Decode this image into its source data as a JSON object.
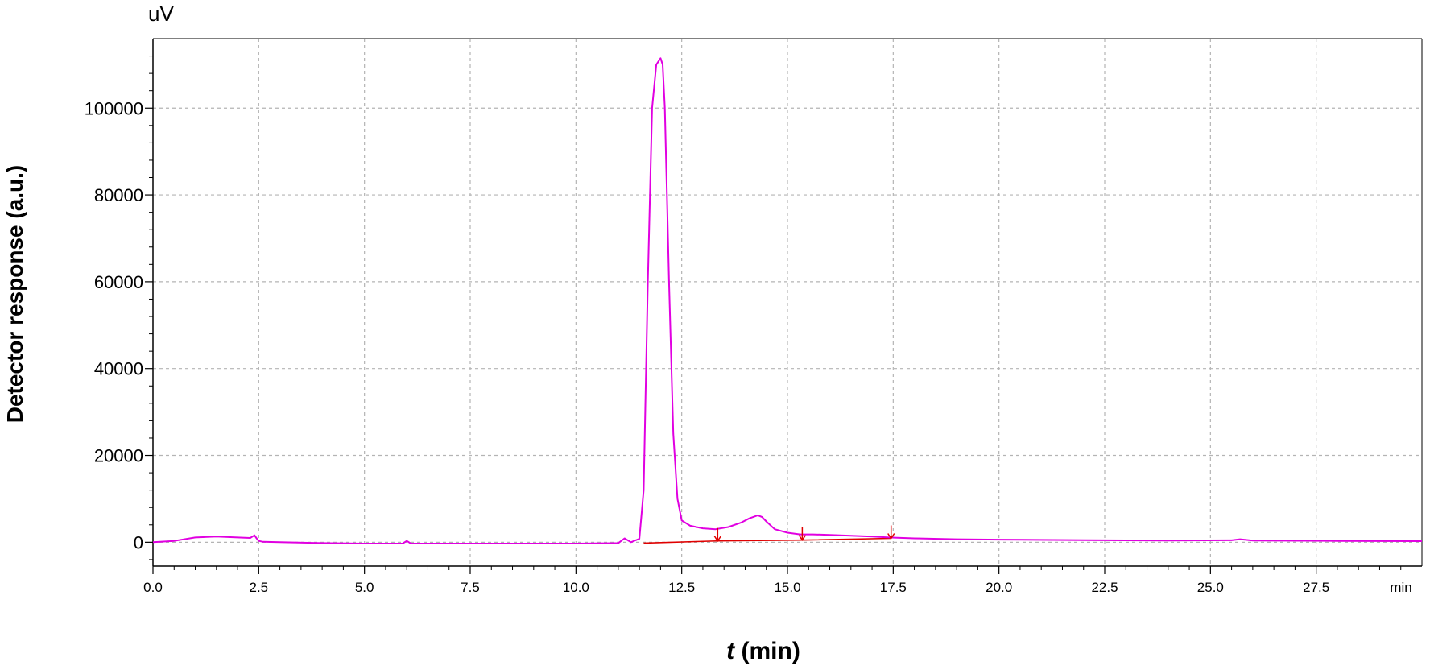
{
  "chart_data": {
    "type": "line",
    "title": "",
    "ylabel": "Detector response (a.u.)",
    "xlabel_var": "t",
    "xlabel_unit": " (min)",
    "y_unit_label": "uV",
    "x_unit_label": "min",
    "xlim": [
      0,
      30
    ],
    "ylim": [
      -5500,
      116000
    ],
    "grid": true,
    "y_ticks": [
      0,
      20000,
      40000,
      60000,
      80000,
      100000
    ],
    "y_tick_labels": [
      "0",
      "20000",
      "40000",
      "60000",
      "80000",
      "100000"
    ],
    "x_ticks": [
      0,
      2.5,
      5,
      7.5,
      10,
      12.5,
      15,
      17.5,
      20,
      22.5,
      25,
      27.5
    ],
    "x_tick_labels": [
      "0.0",
      "2.5",
      "5.0",
      "7.5",
      "10.0",
      "12.5",
      "15.0",
      "17.5",
      "20.0",
      "22.5",
      "25.0",
      "27.5"
    ],
    "colors": {
      "signal": "#e100e1",
      "baseline": "#e00000",
      "grid": "#b4b4b4",
      "axis": "#000000"
    },
    "series": [
      {
        "values_x": [
          0,
          0.5,
          1.0,
          1.5,
          2.0,
          2.3,
          2.4,
          2.45,
          2.5,
          2.6,
          3.0,
          4.0,
          5.0,
          5.9,
          6.0,
          6.1,
          7.0,
          8.0,
          9.0,
          10.0,
          11.0,
          11.15,
          11.3,
          11.5,
          11.6,
          11.7,
          11.8,
          11.9,
          12.0,
          12.05,
          12.1,
          12.2,
          12.3,
          12.4,
          12.5,
          12.7,
          13.0,
          13.3,
          13.6,
          13.9,
          14.1,
          14.3,
          14.4,
          14.5,
          14.7,
          15.0,
          15.3,
          15.6,
          16.0,
          16.5,
          17.0,
          17.4,
          18.0,
          19.0,
          20.0,
          22.0,
          24.0,
          25.5,
          25.7,
          26.0,
          28.0,
          30.0
        ],
        "values_y": [
          0,
          300,
          1100,
          1300,
          1100,
          1000,
          1600,
          900,
          300,
          100,
          0,
          -200,
          -300,
          -300,
          300,
          -300,
          -300,
          -300,
          -300,
          -300,
          -200,
          900,
          0,
          800,
          12000,
          60000,
          100000,
          110000,
          111500,
          110000,
          100000,
          60000,
          25000,
          10000,
          5000,
          3800,
          3200,
          3000,
          3500,
          4500,
          5500,
          6200,
          5800,
          4800,
          3000,
          2200,
          1800,
          1800,
          1700,
          1500,
          1300,
          1100,
          900,
          700,
          600,
          500,
          400,
          450,
          700,
          400,
          300,
          250
        ]
      }
    ],
    "integration_baseline": {
      "x": [
        11.6,
        13.35,
        15.35,
        17.45
      ],
      "y": [
        -200,
        300,
        500,
        900
      ]
    },
    "peak_markers_x": [
      13.35,
      15.35,
      17.45
    ]
  }
}
